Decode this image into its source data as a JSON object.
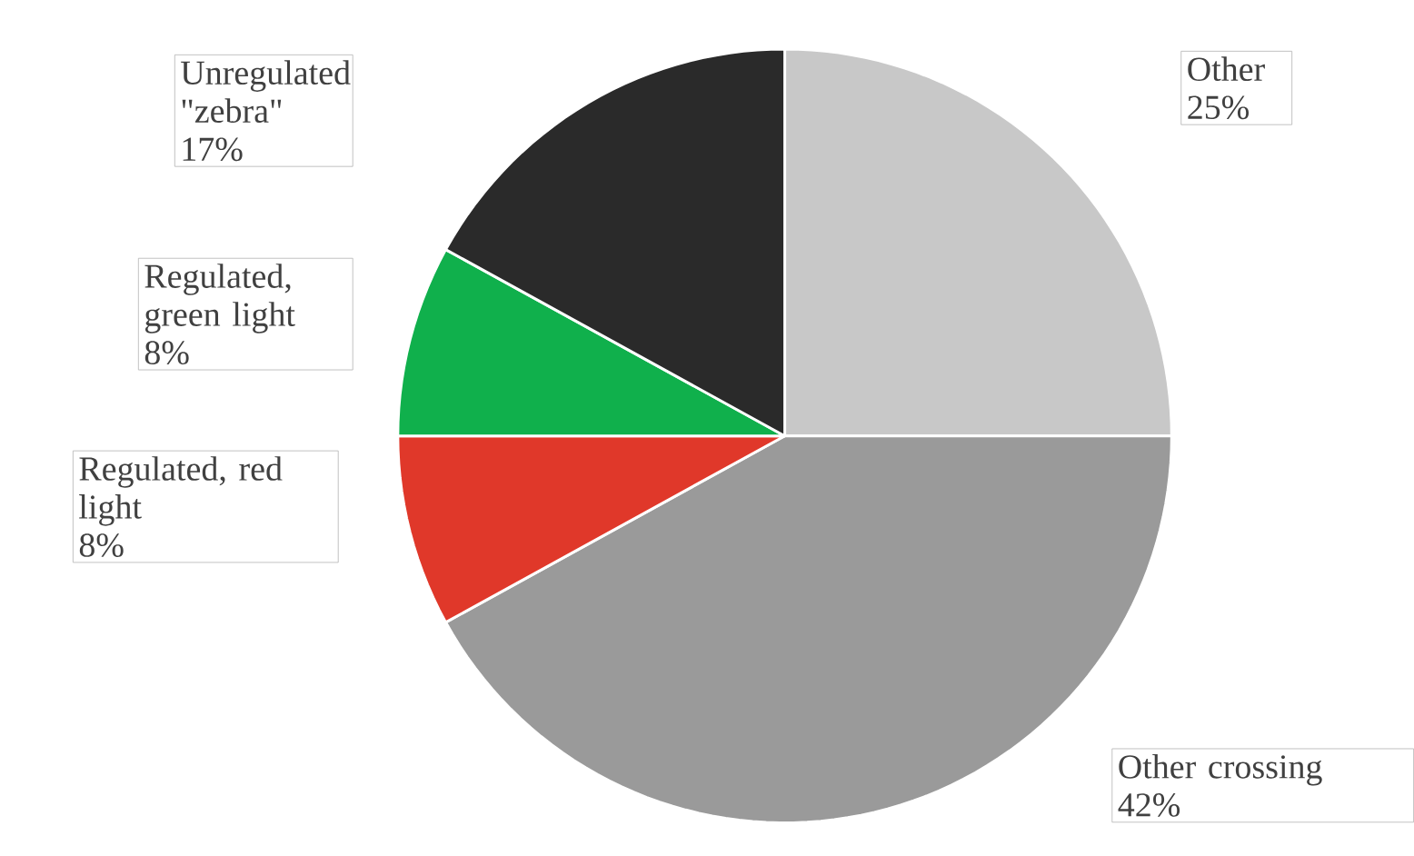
{
  "chart_data": {
    "type": "pie",
    "categories": [
      "Other",
      "Other crossing",
      "Regulated, red light",
      "Regulated, green light",
      "Unregulated \"zebra\""
    ],
    "values": [
      25,
      42,
      8,
      8,
      17
    ],
    "value_labels": [
      "25%",
      "42%",
      "8%",
      "8%",
      "17%"
    ],
    "colors": [
      "#c8c8c8",
      "#9a9a9a",
      "#e0382a",
      "#10b04c",
      "#2a2a2a"
    ],
    "legend": false
  }
}
